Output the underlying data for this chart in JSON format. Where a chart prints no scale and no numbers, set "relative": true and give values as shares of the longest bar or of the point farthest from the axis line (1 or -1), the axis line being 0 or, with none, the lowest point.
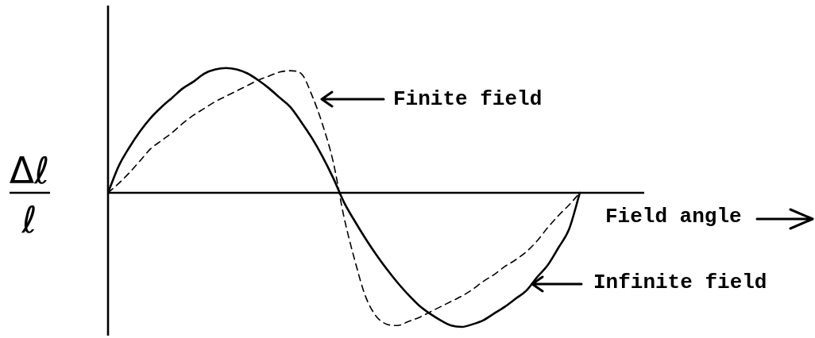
{
  "chart_data": {
    "type": "line",
    "relative": true,
    "ylabel": "Δℓ\nℓ",
    "xlabel": "Field angle",
    "marker": "none",
    "categories": [
      null,
      null,
      null,
      null,
      null,
      null,
      null,
      null,
      null,
      null,
      null,
      null,
      null,
      null,
      null,
      null,
      null,
      null,
      null,
      null,
      null,
      null,
      null,
      null,
      null,
      null,
      null,
      null,
      null,
      null,
      null,
      null,
      null,
      null,
      null,
      null,
      null,
      null,
      null,
      null,
      null,
      null,
      null,
      null,
      null,
      null,
      null,
      null,
      null,
      null,
      null
    ],
    "annotations": [
      "Finite field",
      "Infinite field"
    ],
    "series": [
      {
        "color": "#000000",
        "line_style": "solid",
        "values": [
          0,
          0.2,
          0.34,
          0.46,
          0.56,
          0.64,
          0.71,
          0.78,
          0.83,
          0.89,
          0.92,
          0.93,
          0.92,
          0.89,
          0.84,
          0.78,
          0.71,
          0.64,
          0.53,
          0.41,
          0.27,
          0.11,
          -0.07,
          -0.21,
          -0.34,
          -0.46,
          -0.57,
          -0.67,
          -0.76,
          -0.84,
          -0.9,
          -0.95,
          -0.99,
          -1,
          -0.98,
          -0.95,
          -0.9,
          -0.85,
          -0.79,
          -0.73,
          -0.63,
          -0.54,
          -0.41,
          -0.27,
          0,
          null,
          null,
          null,
          null,
          null,
          null
        ]
      },
      {
        "color": "#000000",
        "line_style": "dashed",
        "values": [
          0,
          0.07,
          0.15,
          0.24,
          0.33,
          0.39,
          0.45,
          0.52,
          0.58,
          0.63,
          0.68,
          0.72,
          0.76,
          0.8,
          0.84,
          0.87,
          0.9,
          0.91,
          0.89,
          0.73,
          0.51,
          0.23,
          -0.18,
          -0.5,
          -0.77,
          -0.92,
          -0.98,
          -0.99,
          -0.96,
          -0.93,
          -0.89,
          -0.85,
          -0.81,
          -0.77,
          -0.72,
          -0.66,
          -0.61,
          -0.55,
          -0.5,
          -0.44,
          -0.36,
          -0.26,
          -0.17,
          -0.09,
          0,
          null,
          null,
          null,
          null,
          null,
          null
        ]
      }
    ]
  }
}
